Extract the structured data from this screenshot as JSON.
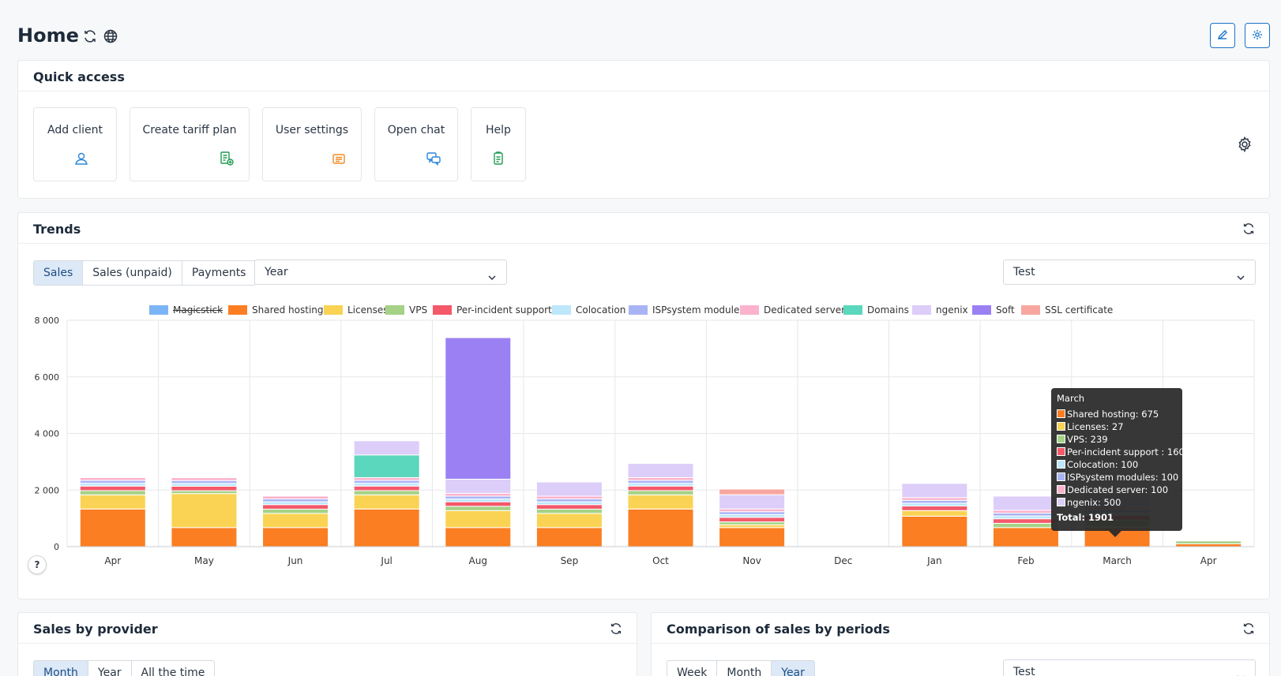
{
  "header": {
    "title": "Home"
  },
  "quick_access": {
    "title": "Quick access",
    "tiles": [
      {
        "label": "Add client",
        "icon": "user-icon"
      },
      {
        "label": "Create tariff plan",
        "icon": "tariff-add-icon"
      },
      {
        "label": "User settings",
        "icon": "user-settings-icon"
      },
      {
        "label": "Open chat",
        "icon": "chat-icon"
      },
      {
        "label": "Help",
        "icon": "help-doc-icon"
      }
    ]
  },
  "trends": {
    "title": "Trends",
    "tabs": [
      {
        "label": "Sales",
        "active": true
      },
      {
        "label": "Sales (unpaid)",
        "active": false
      },
      {
        "label": "Payments",
        "active": false
      }
    ],
    "period_select": "Year",
    "provider_select": "Test",
    "help_label": "?"
  },
  "chart_data": {
    "type": "bar",
    "stacked": true,
    "categories": [
      "Apr",
      "May",
      "Jun",
      "Jul",
      "Aug",
      "Sep",
      "Oct",
      "Nov",
      "Dec",
      "Jan",
      "Feb",
      "March",
      "Apr"
    ],
    "ylim": [
      0,
      8000
    ],
    "yticks": [
      "0",
      "2 000",
      "4 000",
      "6 000",
      "8 000"
    ],
    "ytick_values": [
      0,
      2000,
      4000,
      6000,
      8000
    ],
    "grid": true,
    "legend_position": "top",
    "series": [
      {
        "name": "Magicstick",
        "color": "#7cb5f5",
        "hidden": true,
        "values": [
          0,
          0,
          0,
          0,
          0,
          0,
          0,
          0,
          0,
          0,
          0,
          0,
          0
        ]
      },
      {
        "name": "Shared hosting",
        "color": "#fb7e22",
        "values": [
          1330,
          675,
          675,
          1330,
          675,
          675,
          1330,
          675,
          0,
          1075,
          675,
          675,
          100
        ]
      },
      {
        "name": "Licenses",
        "color": "#fad354",
        "values": [
          500,
          1200,
          500,
          500,
          600,
          500,
          500,
          100,
          0,
          200,
          0,
          27,
          0
        ]
      },
      {
        "name": "VPS",
        "color": "#a5d286",
        "values": [
          150,
          100,
          150,
          150,
          150,
          150,
          150,
          100,
          0,
          0,
          150,
          239,
          100
        ]
      },
      {
        "name": "Per-incident support",
        "color": "#f4596a",
        "values": [
          160,
          160,
          160,
          160,
          160,
          160,
          160,
          160,
          0,
          160,
          160,
          160,
          0
        ]
      },
      {
        "name": "Colocation",
        "color": "#bde7fb",
        "values": [
          100,
          100,
          100,
          100,
          100,
          100,
          100,
          100,
          0,
          100,
          100,
          100,
          0
        ]
      },
      {
        "name": "ISPsystem modules",
        "color": "#a9b4f6",
        "values": [
          100,
          100,
          100,
          100,
          100,
          100,
          100,
          100,
          0,
          100,
          100,
          100,
          0
        ]
      },
      {
        "name": "Dedicated server",
        "color": "#fcb2cd",
        "values": [
          100,
          100,
          100,
          100,
          100,
          100,
          100,
          100,
          0,
          100,
          100,
          100,
          0
        ]
      },
      {
        "name": "Domains",
        "color": "#5ad7bc",
        "values": [
          0,
          0,
          0,
          800,
          0,
          0,
          0,
          0,
          0,
          0,
          0,
          0,
          0
        ]
      },
      {
        "name": "ngenix",
        "color": "#dccdf9",
        "values": [
          0,
          0,
          0,
          500,
          500,
          500,
          500,
          500,
          0,
          500,
          500,
          500,
          0
        ]
      },
      {
        "name": "Soft",
        "color": "#9a80f2",
        "values": [
          0,
          0,
          0,
          0,
          5000,
          0,
          0,
          0,
          0,
          0,
          0,
          0,
          0
        ]
      },
      {
        "name": "SSL certificate",
        "color": "#f7a7a0",
        "values": [
          0,
          0,
          0,
          0,
          0,
          0,
          0,
          200,
          0,
          0,
          0,
          0,
          0
        ]
      }
    ],
    "tooltip": {
      "title": "March",
      "rows": [
        {
          "label": "Shared hosting: 675",
          "color": "#fb7e22"
        },
        {
          "label": "Licenses: 27",
          "color": "#fad354"
        },
        {
          "label": "VPS: 239",
          "color": "#a5d286"
        },
        {
          "label": "Per-incident support : 160",
          "color": "#f4596a"
        },
        {
          "label": "Colocation: 100",
          "color": "#bde7fb"
        },
        {
          "label": "ISPsystem modules: 100",
          "color": "#a9b4f6"
        },
        {
          "label": "Dedicated server: 100",
          "color": "#fcb2cd"
        },
        {
          "label": "ngenix: 500",
          "color": "#dccdf9"
        }
      ],
      "total": "Total: 1901"
    }
  },
  "sales_by_provider": {
    "title": "Sales by provider",
    "tabs": [
      {
        "label": "Month",
        "active": true
      },
      {
        "label": "Year",
        "active": false
      },
      {
        "label": "All the time",
        "active": false
      }
    ]
  },
  "comparison": {
    "title": "Comparison of sales by periods",
    "tabs": [
      {
        "label": "Week",
        "active": false
      },
      {
        "label": "Month",
        "active": false
      },
      {
        "label": "Year",
        "active": true
      }
    ],
    "provider_select": "Test"
  }
}
